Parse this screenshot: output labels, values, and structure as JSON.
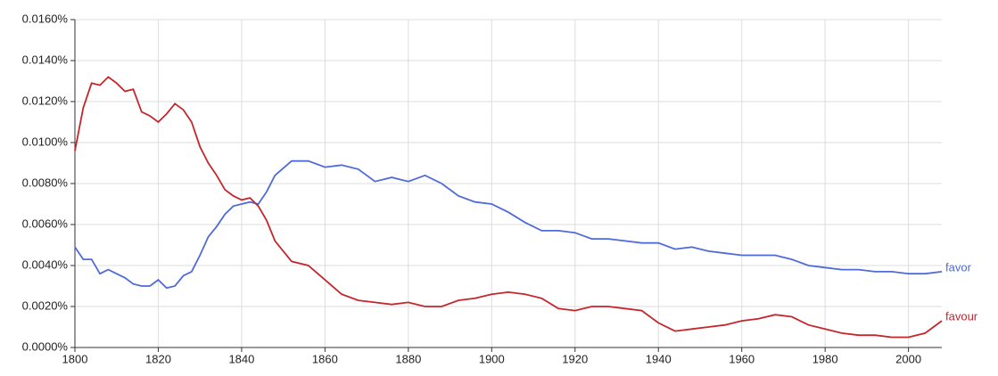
{
  "chart_data": {
    "type": "line",
    "x": [
      1800,
      1802,
      1804,
      1806,
      1808,
      1810,
      1812,
      1814,
      1816,
      1818,
      1820,
      1822,
      1824,
      1826,
      1828,
      1830,
      1832,
      1834,
      1836,
      1838,
      1840,
      1842,
      1844,
      1846,
      1848,
      1852,
      1856,
      1860,
      1864,
      1868,
      1872,
      1876,
      1880,
      1884,
      1888,
      1892,
      1896,
      1900,
      1904,
      1908,
      1912,
      1916,
      1920,
      1924,
      1928,
      1932,
      1936,
      1940,
      1944,
      1948,
      1952,
      1956,
      1960,
      1964,
      1968,
      1972,
      1976,
      1980,
      1984,
      1988,
      1992,
      1996,
      2000,
      2004,
      2008
    ],
    "series": [
      {
        "name": "favor",
        "color": "#4f6ad9",
        "values": [
          0.0049,
          0.0043,
          0.0043,
          0.0036,
          0.0038,
          0.0036,
          0.0034,
          0.0031,
          0.003,
          0.003,
          0.0033,
          0.0029,
          0.003,
          0.0035,
          0.0037,
          0.0045,
          0.0054,
          0.0059,
          0.0065,
          0.0069,
          0.007,
          0.0071,
          0.007,
          0.0076,
          0.0084,
          0.0091,
          0.0091,
          0.0088,
          0.0089,
          0.0087,
          0.0081,
          0.0083,
          0.0081,
          0.0084,
          0.008,
          0.0074,
          0.0071,
          0.007,
          0.0066,
          0.0061,
          0.0057,
          0.0057,
          0.0056,
          0.0053,
          0.0053,
          0.0052,
          0.0051,
          0.0051,
          0.0048,
          0.0049,
          0.0047,
          0.0046,
          0.0045,
          0.0045,
          0.0045,
          0.0043,
          0.004,
          0.0039,
          0.0038,
          0.0038,
          0.0037,
          0.0037,
          0.0036,
          0.0036,
          0.0037
        ]
      },
      {
        "name": "favour",
        "color": "#c4262c",
        "values": [
          0.0096,
          0.0117,
          0.0129,
          0.0128,
          0.0132,
          0.0129,
          0.0125,
          0.0126,
          0.0115,
          0.0113,
          0.011,
          0.0114,
          0.0119,
          0.0116,
          0.011,
          0.0098,
          0.009,
          0.0084,
          0.0077,
          0.0074,
          0.0072,
          0.0073,
          0.0069,
          0.0062,
          0.0052,
          0.0042,
          0.004,
          0.0033,
          0.0026,
          0.0023,
          0.0022,
          0.0021,
          0.0022,
          0.002,
          0.002,
          0.0023,
          0.0024,
          0.0026,
          0.0027,
          0.0026,
          0.0024,
          0.0019,
          0.0018,
          0.002,
          0.002,
          0.0019,
          0.0018,
          0.0012,
          0.0008,
          0.0009,
          0.001,
          0.0011,
          0.0013,
          0.0014,
          0.0016,
          0.0015,
          0.0011,
          0.0009,
          0.0007,
          0.0006,
          0.0006,
          0.0005,
          0.0005,
          0.0007,
          0.0013
        ]
      }
    ],
    "xlim": [
      1800,
      2008
    ],
    "xticks": [
      1800,
      1820,
      1840,
      1860,
      1880,
      1900,
      1920,
      1940,
      1960,
      1980,
      2000
    ],
    "ylim": [
      0,
      0.016
    ],
    "yticks": [
      {
        "value": 0,
        "label": "0.0000%"
      },
      {
        "value": 0.002,
        "label": "0.0020%"
      },
      {
        "value": 0.004,
        "label": "0.0040%"
      },
      {
        "value": 0.006,
        "label": "0.0060%"
      },
      {
        "value": 0.008,
        "label": "0.0080%"
      },
      {
        "value": 0.01,
        "label": "0.0100%"
      },
      {
        "value": 0.012,
        "label": "0.0120%"
      },
      {
        "value": 0.014,
        "label": "0.0140%"
      },
      {
        "value": 0.016,
        "label": "0.0160%"
      }
    ],
    "grid": true
  }
}
